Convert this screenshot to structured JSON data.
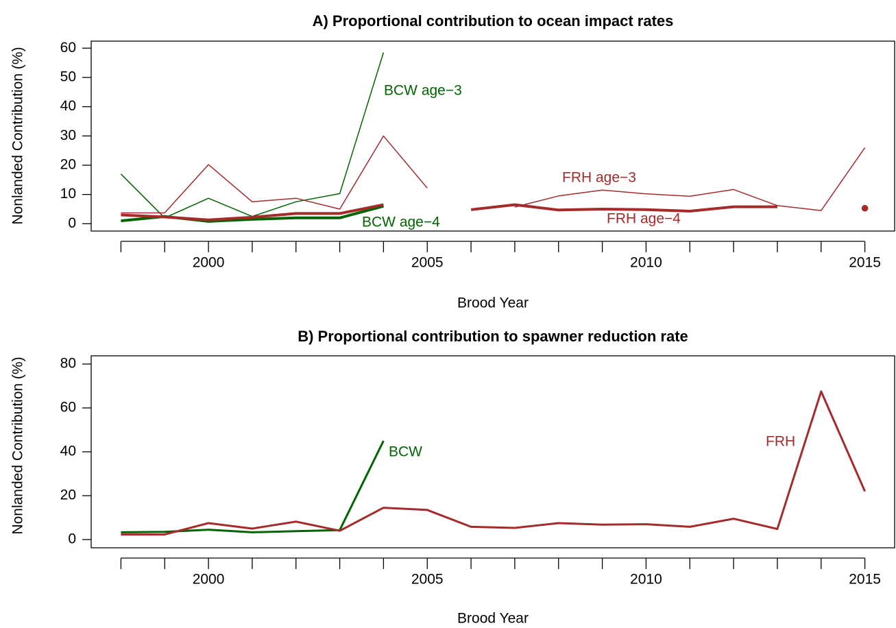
{
  "chart_data": [
    {
      "type": "line",
      "title": "A) Proportional contribution to ocean impact rates",
      "xlabel": "Brood Year",
      "ylabel": "Nonlanded Contribution (%)",
      "x": [
        1998,
        1999,
        2000,
        2001,
        2002,
        2003,
        2004,
        2005,
        2006,
        2007,
        2008,
        2009,
        2010,
        2011,
        2012,
        2013,
        2014,
        2015
      ],
      "xlim": [
        1997.32,
        2015.68
      ],
      "xticks": [
        2000,
        2005,
        2010,
        2015
      ],
      "ylim": [
        -2.5,
        62.4
      ],
      "yticks": [
        0,
        10,
        20,
        30,
        40,
        50,
        60
      ],
      "series": [
        {
          "name": "BCW age−3",
          "color": "#006400",
          "linewidth": 1.5,
          "values": [
            17,
            2,
            8.7,
            2.5,
            7.5,
            10.3,
            58.5,
            null,
            null,
            null,
            null,
            null,
            null,
            null,
            null,
            null,
            null,
            null
          ]
        },
        {
          "name": "BCW age−4",
          "color": "#006400",
          "linewidth": 4,
          "values": [
            1,
            2.5,
            0.8,
            1.5,
            2,
            2,
            6,
            null,
            null,
            null,
            null,
            null,
            null,
            null,
            null,
            null,
            null,
            null
          ]
        },
        {
          "name": "FRH age−3",
          "color": "#a52a2a",
          "linewidth": 1.5,
          "values": [
            3.7,
            3.7,
            20.2,
            7.5,
            8.7,
            5,
            30,
            12.2,
            null,
            5.7,
            9.5,
            11.5,
            10.2,
            9.4,
            11.7,
            6.2,
            4.5,
            26
          ]
        },
        {
          "name": "FRH age−4",
          "color": "#a52a2a",
          "linewidth": 4,
          "values": [
            3,
            2.3,
            1.3,
            2.2,
            3.5,
            3.5,
            6.5,
            null,
            4.8,
            6.5,
            4.7,
            5,
            4.8,
            4.3,
            5.8,
            5.8,
            null,
            5.3
          ]
        }
      ]
    },
    {
      "type": "line",
      "title": "B) Proportional contribution to spawner reduction rate",
      "xlabel": "Brood Year",
      "ylabel": "Nonlanded Contribution (%)",
      "x": [
        1998,
        1999,
        2000,
        2001,
        2002,
        2003,
        2004,
        2005,
        2006,
        2007,
        2008,
        2009,
        2010,
        2011,
        2012,
        2013,
        2014,
        2015
      ],
      "xlim": [
        1997.32,
        2015.68
      ],
      "xticks": [
        2000,
        2005,
        2010,
        2015
      ],
      "ylim": [
        -3.75,
        83.75
      ],
      "yticks": [
        0,
        20,
        40,
        60,
        80
      ],
      "series": [
        {
          "name": "BCW",
          "color": "#006400",
          "linewidth": 3,
          "values": [
            3.3,
            3.5,
            4.5,
            3.3,
            3.8,
            4.3,
            45,
            null,
            null,
            null,
            null,
            null,
            null,
            null,
            null,
            null,
            null,
            null
          ]
        },
        {
          "name": "FRH",
          "color": "#a52a2a",
          "linewidth": 3,
          "values": [
            2.3,
            2.3,
            7.5,
            5,
            8.2,
            4,
            14.5,
            13.5,
            5.8,
            5.3,
            7.5,
            6.8,
            7,
            5.8,
            9.5,
            4.8,
            67.5,
            22
          ]
        }
      ]
    }
  ]
}
